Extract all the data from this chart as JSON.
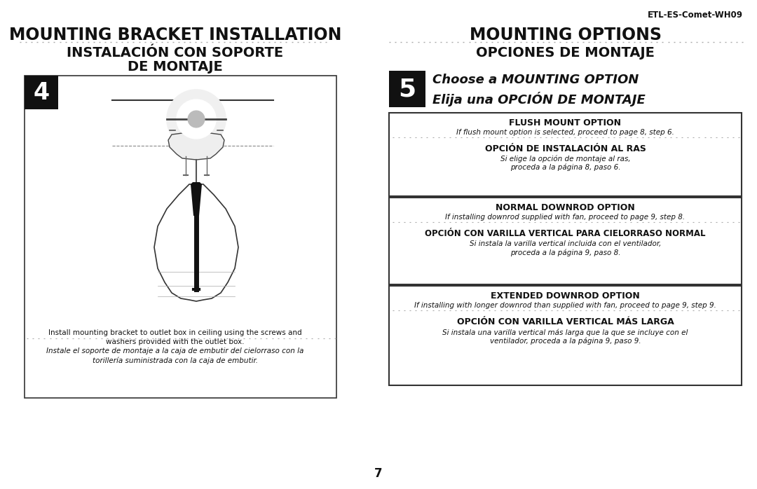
{
  "bg_color": "#ffffff",
  "text_color": "#1a1a1a",
  "page_number": "7",
  "header_ref": "ETL-ES-Comet-WH09",
  "left_title1": "MOUNTING BRACKET INSTALLATION",
  "left_title2": "INSTALACIÓN CON SOPORTE",
  "left_title3": "DE MONTAJE",
  "right_title1": "MOUNTING OPTIONS",
  "right_title2": "OPCIONES DE MONTAJE",
  "step4_label": "4",
  "step5_label": "5",
  "step5_text1": "Choose a MOUNTING OPTION",
  "step5_text2": "Elija una OPCIÓN DE MONTAJE",
  "left_caption1_en1": "Install mounting bracket to outlet box in ceiling using the screws and",
  "left_caption1_en2": "washers provided with the outlet box.",
  "left_caption1_es1": "Instale el soporte de montaje a la caja de embutir del cielorraso con la",
  "left_caption1_es2": "torillería suministrada con la caja de embutir.",
  "box1_title": "FLUSH MOUNT OPTION",
  "box1_en": "If flush mount option is selected, proceed to page 8, step 6.",
  "box1_es_title": "OPCIÓN DE INSTALACIÓN AL RAS",
  "box1_es1": "Si elige la opción de montaje al ras,",
  "box1_es2": "proceda a la página 8, paso 6.",
  "box2_title": "NORMAL DOWNROD OPTION",
  "box2_en": "If installing downrod supplied with fan, proceed to page 9, step 8.",
  "box2_es_title": "OPCIÓN CON VARILLA VERTICAL PARA CIELORRASO NORMAL",
  "box2_es1": "Si instala la varilla vertical incluida con el ventilador,",
  "box2_es2": "proceda a la página 9, paso 8.",
  "box3_title": "EXTENDED DOWNROD OPTION",
  "box3_en": "If installing with longer downrod than supplied with fan, proceed to page 9, step 9.",
  "box3_es_title": "OPCIÓN CON VARILLA VERTICAL MÁS LARGA",
  "box3_es1": "Si instala una varilla vertical más larga que la que se incluye con el",
  "box3_es2": "ventilador, proceda a la página 9, paso 9."
}
